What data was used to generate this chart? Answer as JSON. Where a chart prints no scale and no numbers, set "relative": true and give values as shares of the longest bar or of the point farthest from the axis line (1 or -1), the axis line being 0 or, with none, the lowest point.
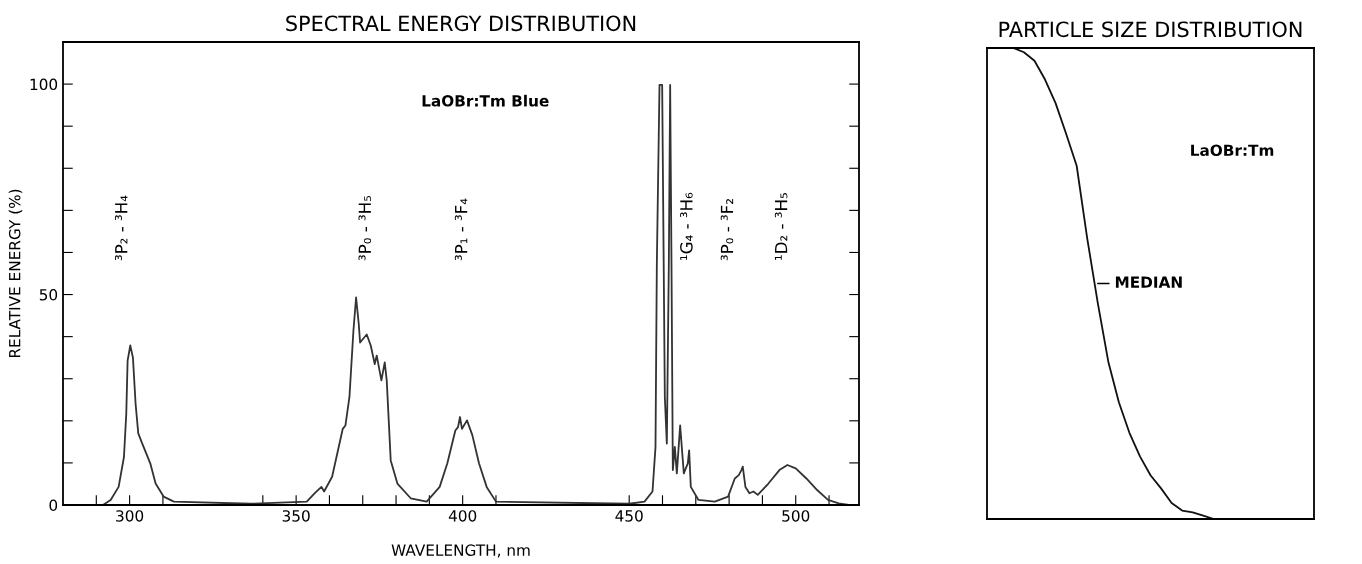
{
  "chart_data": [
    {
      "type": "line",
      "title": "SPECTRAL ENERGY DISTRIBUTION",
      "xlabel": "WAVELENGTH, nm",
      "ylabel": "RELATIVE ENERGY (%)",
      "xlim": [
        280,
        519
      ],
      "ylim": [
        0,
        110
      ],
      "xticks": [
        {
          "value": 290,
          "label": null
        },
        300,
        {
          "value": 310,
          "label": null
        },
        {
          "value": 340,
          "label": null
        },
        350,
        {
          "value": 360,
          "label": null
        },
        {
          "value": 370,
          "label": null
        },
        {
          "value": 380,
          "label": null
        },
        {
          "value": 390,
          "label": null
        },
        400,
        {
          "value": 410,
          "label": null
        },
        450,
        {
          "value": 460,
          "label": null
        },
        {
          "value": 470,
          "label": null
        },
        {
          "value": 480,
          "label": null
        },
        {
          "value": 490,
          "label": null
        },
        500,
        {
          "value": 510,
          "label": null
        }
      ],
      "yticks": [
        0,
        {
          "value": 10,
          "label": null
        },
        {
          "value": 20,
          "label": null
        },
        {
          "value": 30,
          "label": null
        },
        {
          "value": 40,
          "label": null
        },
        50,
        {
          "value": 60,
          "label": null
        },
        {
          "value": 70,
          "label": null
        },
        {
          "value": 80,
          "label": null
        },
        {
          "value": 90,
          "label": null
        },
        100
      ],
      "grid": false,
      "legend": false,
      "series": [
        {
          "color": "#333333",
          "x": [
            292,
            294.3,
            296.7,
            298.3,
            299,
            299.4,
            300.2,
            301,
            301.8,
            302.6,
            303.8,
            306.2,
            307.8,
            310.2,
            313.3,
            336.4,
            353.2,
            355.6,
            357.6,
            358.4,
            360.8,
            364,
            364.8,
            366,
            367.2,
            368,
            368.8,
            369.2,
            371.2,
            372.4,
            373.6,
            374.2,
            375.6,
            376.6,
            377.2,
            378.4,
            380.4,
            384.4,
            389.2,
            393.1,
            395.4,
            397.8,
            398.6,
            399.2,
            399.8,
            401.3,
            402.9,
            404.9,
            407.2,
            410,
            450,
            454.6,
            457,
            457.9,
            458.3,
            459.1,
            459.9,
            460.7,
            461.3,
            461.9,
            462.3,
            462.7,
            463.1,
            463.7,
            464.3,
            465.3,
            466.4,
            467.6,
            468,
            468.5,
            470.8,
            475.7,
            479.7,
            481.7,
            482.9,
            483.7,
            484.1,
            484.9,
            486.1,
            487.3,
            488.6,
            491.8,
            495.1,
            497.5,
            500,
            503.2,
            506.5,
            509.7,
            512.9,
            516.2
          ],
          "values": [
            0,
            1.2,
            4.3,
            11.4,
            21.7,
            34.3,
            37.9,
            35,
            24,
            17,
            14.6,
            9.9,
            5.1,
            2,
            0.8,
            0.3,
            0.8,
            2.8,
            4.3,
            3.2,
            6.7,
            18.1,
            18.9,
            25.6,
            41.4,
            49.3,
            43,
            38.6,
            40.5,
            37.9,
            33.5,
            35.5,
            29.6,
            33.9,
            29.6,
            10.6,
            5.1,
            1.6,
            0.8,
            4.3,
            9.9,
            17.7,
            18.5,
            20.9,
            18.1,
            20.1,
            16.6,
            9.9,
            4.3,
            0.8,
            0.3,
            0.8,
            3.2,
            13.8,
            57.2,
            99.8,
            99.8,
            25.6,
            14.6,
            57.2,
            99.8,
            57.2,
            8.3,
            13.8,
            7.5,
            18.9,
            7.5,
            9.9,
            13,
            4.3,
            1.2,
            0.8,
            2,
            6.3,
            7.1,
            8.3,
            9.1,
            4.3,
            2.8,
            3.2,
            2.4,
            5.1,
            8.3,
            9.5,
            8.7,
            6.3,
            3.5,
            1.2,
            0.4,
            0
          ]
        }
      ],
      "annotations": [
        "LaOBr:Tm Blue",
        "³P₂ - ³H₄",
        "³P₀ - ³H₅",
        "³P₁ - ³F₄",
        "¹G₄ - ³H₆",
        "³P₀ - ³F₂",
        "¹D₂ - ³H₅"
      ]
    },
    {
      "type": "line",
      "title": "PARTICLE SIZE DISTRIBUTION",
      "relative": true,
      "tick_labels": false,
      "grid": false,
      "legend": false,
      "categories": [
        null,
        null,
        null,
        null,
        null,
        null,
        null,
        null,
        null,
        null,
        null,
        null,
        null,
        null,
        null,
        null,
        null,
        null,
        null,
        null,
        null,
        null,
        null,
        null,
        null,
        null,
        null,
        null,
        null,
        null,
        null
      ],
      "series": [
        {
          "color": "#111111",
          "values": [
            null,
            null,
            1.0,
            0.991,
            0.973,
            0.933,
            0.883,
            0.818,
            0.75,
            0.596,
            0.459,
            0.334,
            0.248,
            0.183,
            0.133,
            0.093,
            0.065,
            0.034,
            0.018,
            0.014,
            0.007,
            0,
            null,
            null,
            null,
            null,
            null,
            null,
            null,
            null,
            null
          ]
        }
      ],
      "annotations": [
        "LaOBr:Tm",
        "MEDIAN"
      ]
    }
  ]
}
